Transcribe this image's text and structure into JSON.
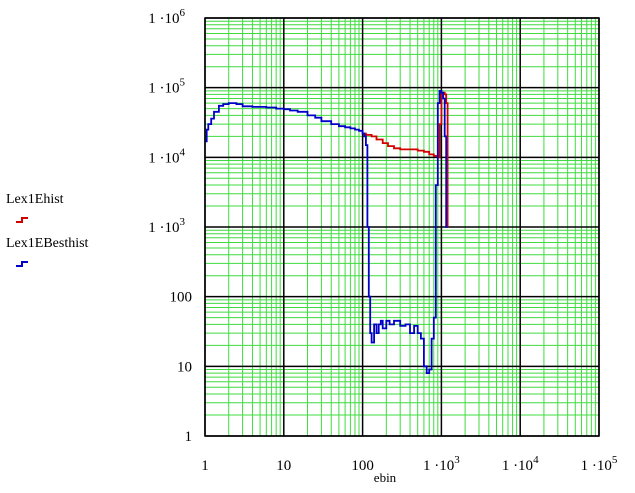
{
  "chart_data": {
    "type": "line",
    "xlabel": "ebin",
    "ylabel": "",
    "x_scale": "log",
    "y_scale": "log",
    "xlim": [
      1,
      100000
    ],
    "ylim": [
      1,
      1000000
    ],
    "grid": true,
    "legend_position": "left",
    "x_ticks": [
      {
        "value": 1,
        "label": "1"
      },
      {
        "value": 10,
        "label": "10"
      },
      {
        "value": 100,
        "label": "100"
      },
      {
        "value": 1000,
        "label": "1 ·10",
        "exp": "3"
      },
      {
        "value": 10000,
        "label": "1 ·10",
        "exp": "4"
      },
      {
        "value": 100000,
        "label": "1 ·10",
        "exp": "5"
      }
    ],
    "y_ticks": [
      {
        "value": 1,
        "label": "1"
      },
      {
        "value": 10,
        "label": "10"
      },
      {
        "value": 100,
        "label": "100"
      },
      {
        "value": 1000,
        "label": "1 ·10",
        "exp": "3"
      },
      {
        "value": 10000,
        "label": "1 ·10",
        "exp": "4"
      },
      {
        "value": 100000,
        "label": "1 ·10",
        "exp": "5"
      },
      {
        "value": 1000000,
        "label": "1 ·10",
        "exp": "6"
      }
    ],
    "series": [
      {
        "name": "Lex1Ehist",
        "color": "#d40000",
        "x": [
          100,
          110,
          130,
          150,
          180,
          210,
          250,
          300,
          400,
          500,
          600,
          700,
          800,
          900,
          950,
          1000,
          1050,
          1100,
          1150,
          1200
        ],
        "y": [
          22000,
          21000,
          20000,
          18000,
          16000,
          14500,
          13500,
          13000,
          13000,
          12500,
          12000,
          11000,
          10500,
          10000,
          30000,
          80000,
          85000,
          80000,
          60000,
          1000
        ]
      },
      {
        "name": "Lex1EBesthist",
        "color": "#0000c8",
        "x": [
          1,
          1.05,
          1.1,
          1.2,
          1.3,
          1.5,
          1.7,
          2,
          2.5,
          3,
          4,
          5,
          6,
          8,
          10,
          12,
          15,
          20,
          25,
          30,
          40,
          50,
          60,
          70,
          80,
          90,
          100,
          105,
          110,
          115,
          120,
          125,
          130,
          140,
          150,
          160,
          170,
          180,
          200,
          220,
          250,
          280,
          300,
          350,
          400,
          450,
          500,
          550,
          600,
          650,
          700,
          750,
          800,
          850,
          900,
          950,
          1000,
          1050,
          1100,
          1150,
          1200
        ],
        "y": [
          17000,
          25000,
          30000,
          36000,
          45000,
          55000,
          58000,
          60000,
          58000,
          54000,
          53000,
          53000,
          52000,
          50000,
          49000,
          47000,
          45000,
          40000,
          37000,
          33000,
          30000,
          28000,
          27000,
          26000,
          25000,
          24000,
          22000,
          20000,
          15000,
          1000,
          100,
          30,
          22,
          40,
          30,
          40,
          45,
          35,
          45,
          40,
          45,
          45,
          38,
          40,
          30,
          38,
          30,
          25,
          10,
          8,
          9,
          25,
          50,
          4000,
          60000,
          90000,
          85000,
          70000,
          20000,
          1000,
          1000
        ]
      }
    ]
  }
}
